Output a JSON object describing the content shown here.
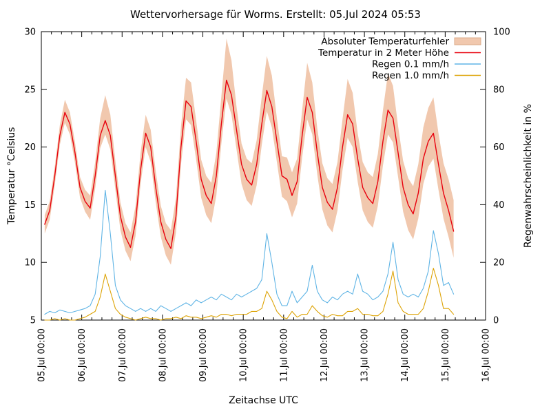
{
  "title": "Wettervorhersage für Worms. Erstellt: 05.Jul 2024 05:53",
  "axes": {
    "x": {
      "label": "Zeitachse UTC",
      "tick_labels": [
        "05.Jul 00:00",
        "06.Jul 00:00",
        "07.Jul 00:00",
        "08.Jul 00:00",
        "09.Jul 00:00",
        "10.Jul 00:00",
        "11.Jul 00:00",
        "12.Jul 00:00",
        "13.Jul 00:00",
        "14.Jul 00:00",
        "15.Jul 00:00",
        "16.Jul 00:00"
      ]
    },
    "y_left": {
      "label": "Temperatur °Celsius",
      "ticks": [
        5,
        10,
        15,
        20,
        25,
        30
      ]
    },
    "y_right": {
      "label": "Regenwahrscheinlichkeit in %",
      "ticks": [
        0,
        20,
        40,
        60,
        80,
        100
      ]
    }
  },
  "legend": {
    "position": "top-right-inside",
    "entries": [
      {
        "label": "Absoluter Temperaturfehler",
        "type": "band",
        "color": "#f1c8ae"
      },
      {
        "label": "Temperatur in 2 Meter Höhe",
        "type": "line",
        "color": "#e8000d"
      },
      {
        "label": "Regen 0.1 mm/h",
        "type": "line",
        "color": "#5fb4e5"
      },
      {
        "label": "Regen 1.0 mm/h",
        "type": "line",
        "color": "#dda305"
      }
    ]
  },
  "chart_data": {
    "type": "line",
    "title": "Wettervorhersage für Worms. Erstellt: 05.Jul 2024 05:53",
    "xlabel": "Zeitachse UTC",
    "ylabel_left": "Temperatur °Celsius",
    "ylabel_right": "Regenwahrscheinlichkeit in %",
    "ylim_left": [
      5,
      30
    ],
    "ylim_right": [
      0,
      100
    ],
    "xlim_hours": [
      0,
      264
    ],
    "x_day_tick_hours": [
      0,
      24,
      48,
      72,
      96,
      120,
      144,
      168,
      192,
      216,
      240,
      264
    ],
    "x_minor_tick_step_hours": 6,
    "grid": false,
    "legend_position": "top-right",
    "x_hours": [
      2,
      5,
      8,
      11,
      14,
      17,
      20,
      23,
      26,
      29,
      32,
      35,
      38,
      41,
      44,
      47,
      50,
      53,
      56,
      59,
      62,
      65,
      68,
      71,
      74,
      77,
      80,
      83,
      86,
      89,
      92,
      95,
      98,
      101,
      104,
      107,
      110,
      113,
      116,
      119,
      122,
      125,
      128,
      131,
      134,
      137,
      140,
      143,
      146,
      149,
      152,
      155,
      158,
      161,
      164,
      167,
      170,
      173,
      176,
      179,
      182,
      185,
      188,
      191,
      194,
      197,
      200,
      203,
      206,
      209,
      212,
      215,
      218,
      221,
      224,
      227,
      230,
      233,
      236,
      239,
      242,
      245
    ],
    "series": [
      {
        "name": "Absoluter Temperaturfehler",
        "type": "band",
        "axis": "left",
        "color": "#f1c8ae",
        "upper": [
          14.1,
          15.3,
          18.3,
          21.9,
          24.1,
          23.0,
          20.4,
          17.4,
          16.3,
          15.8,
          18.7,
          22.5,
          24.5,
          22.8,
          18.8,
          15.2,
          13.4,
          12.6,
          14.9,
          19.5,
          22.8,
          21.5,
          17.9,
          14.9,
          13.4,
          12.8,
          15.6,
          21.8,
          26.0,
          25.6,
          22.3,
          18.9,
          17.5,
          16.9,
          19.5,
          24.4,
          29.4,
          27.5,
          23.5,
          20.3,
          19.0,
          18.6,
          20.6,
          24.4,
          27.9,
          26.2,
          22.5,
          19.2,
          19.1,
          17.8,
          19.0,
          23.2,
          27.3,
          25.6,
          21.6,
          18.6,
          17.3,
          16.8,
          18.7,
          22.4,
          25.9,
          24.7,
          21.2,
          18.7,
          17.8,
          17.4,
          19.4,
          23.2,
          26.4,
          25.3,
          21.8,
          18.8,
          17.3,
          16.6,
          18.5,
          21.7,
          23.4,
          24.3,
          21.2,
          18.6,
          17.2,
          15.4
        ],
        "lower": [
          12.5,
          13.7,
          16.7,
          20.2,
          22.1,
          21.1,
          18.6,
          15.6,
          14.4,
          13.7,
          16.4,
          19.9,
          21.1,
          19.8,
          16.3,
          12.8,
          11.0,
          10.1,
          12.3,
          16.8,
          20.0,
          18.7,
          15.2,
          12.2,
          10.6,
          9.8,
          12.6,
          18.5,
          22.4,
          21.9,
          18.9,
          15.6,
          14.1,
          13.4,
          15.8,
          20.3,
          24.2,
          22.8,
          19.8,
          16.8,
          15.4,
          14.9,
          16.7,
          20.2,
          23.1,
          21.7,
          18.7,
          15.7,
          15.3,
          13.9,
          15.1,
          19.1,
          22.4,
          21.1,
          17.6,
          14.6,
          13.2,
          12.6,
          14.5,
          18.0,
          20.8,
          20.0,
          17.0,
          14.5,
          13.5,
          13.0,
          14.9,
          18.4,
          21.1,
          20.4,
          17.4,
          14.4,
          12.8,
          12.0,
          13.8,
          16.8,
          18.3,
          19.0,
          16.3,
          13.8,
          12.2,
          10.4
        ]
      },
      {
        "name": "Temperatur in 2 Meter Höhe",
        "type": "line",
        "axis": "left",
        "color": "#e8000d",
        "values": [
          13.3,
          14.5,
          17.5,
          21.0,
          23.0,
          22.0,
          19.5,
          16.5,
          15.3,
          14.7,
          17.5,
          21.0,
          22.3,
          21.0,
          17.5,
          14.0,
          12.2,
          11.3,
          13.5,
          18.0,
          21.2,
          20.0,
          16.5,
          13.5,
          12.0,
          11.2,
          14.0,
          20.0,
          24.0,
          23.5,
          20.5,
          17.2,
          15.8,
          15.1,
          17.5,
          22.0,
          25.8,
          24.5,
          21.5,
          18.5,
          17.2,
          16.7,
          18.5,
          22.0,
          24.9,
          23.5,
          20.5,
          17.5,
          17.2,
          15.8,
          17.0,
          21.0,
          24.3,
          23.0,
          19.5,
          16.5,
          15.2,
          14.6,
          16.5,
          20.0,
          22.8,
          22.0,
          19.0,
          16.5,
          15.6,
          15.1,
          17.0,
          20.5,
          23.2,
          22.5,
          19.5,
          16.5,
          15.0,
          14.2,
          16.0,
          19.0,
          20.5,
          21.2,
          18.5,
          16.0,
          14.5,
          12.7
        ]
      },
      {
        "name": "Regen 0.1 mm/h",
        "type": "line",
        "axis": "right",
        "color": "#5fb4e5",
        "values": [
          2,
          3,
          2.5,
          3.5,
          3,
          2.5,
          3,
          3.5,
          4,
          5,
          9,
          22,
          45,
          30,
          12,
          7,
          5,
          4,
          3,
          4,
          3,
          4,
          3,
          5,
          4,
          3,
          4,
          5,
          6,
          5,
          7,
          6,
          7,
          8,
          7,
          9,
          8,
          7,
          9,
          8,
          9,
          10,
          11,
          14,
          30,
          20,
          9,
          5,
          5,
          10,
          6,
          8,
          10,
          19,
          10,
          7,
          6,
          8,
          7,
          9,
          10,
          9,
          16,
          10,
          9,
          7,
          8,
          10,
          16,
          27,
          14,
          9,
          8,
          9,
          8,
          11,
          17,
          31,
          23,
          12,
          13,
          9
        ]
      },
      {
        "name": "Regen 1.0 mm/h",
        "type": "line",
        "axis": "right",
        "color": "#dda305",
        "values": [
          0,
          0,
          0.5,
          0,
          0.5,
          0,
          0,
          0.5,
          1,
          2,
          3,
          8,
          16,
          10,
          4,
          2,
          1,
          0.5,
          0,
          0.5,
          1,
          0.5,
          0.5,
          0,
          0.5,
          0.5,
          1,
          0.5,
          1.5,
          1,
          1,
          0.5,
          1,
          1.5,
          1,
          2,
          2,
          1.5,
          2,
          2,
          2,
          3,
          3,
          4,
          10,
          7,
          3,
          1,
          0.5,
          3,
          1,
          2,
          2,
          5,
          3,
          1.5,
          1,
          2,
          1.5,
          1.5,
          3,
          3,
          4,
          2,
          2,
          1.5,
          1.5,
          3,
          9,
          17,
          6,
          3,
          2,
          2,
          2,
          4,
          10,
          18,
          12,
          4,
          4,
          2
        ]
      }
    ]
  }
}
